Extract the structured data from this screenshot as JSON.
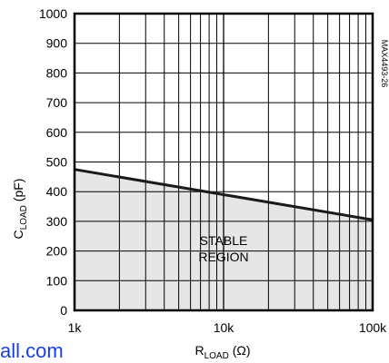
{
  "chart_data": {
    "type": "area",
    "xscale": "log",
    "xlim": [
      1000,
      100000
    ],
    "ylim": [
      0,
      1000
    ],
    "x_ticks": [
      {
        "value": 1000,
        "label": "1k"
      },
      {
        "value": 10000,
        "label": "10k"
      },
      {
        "value": 100000,
        "label": "100k"
      }
    ],
    "y_ticks": [
      0,
      100,
      200,
      300,
      400,
      500,
      600,
      700,
      800,
      900,
      1000
    ],
    "xlabel_main": "R",
    "xlabel_sub": "LOAD",
    "xlabel_unit": " (Ω)",
    "ylabel_main": "C",
    "ylabel_sub": "LOAD",
    "ylabel_unit": " (pF)",
    "series": [
      {
        "x": [
          1000,
          10000,
          100000
        ],
        "y": [
          475,
          390,
          305
        ]
      }
    ],
    "region_label_line1": "STABLE",
    "region_label_line2": "REGION",
    "fill_color": "#e6e6e6",
    "line_color": "#1a1a1a",
    "grid": true,
    "figure_code": "MAX4493-26"
  },
  "footer_text": "all.com",
  "footer_color": "#1a3fe0"
}
